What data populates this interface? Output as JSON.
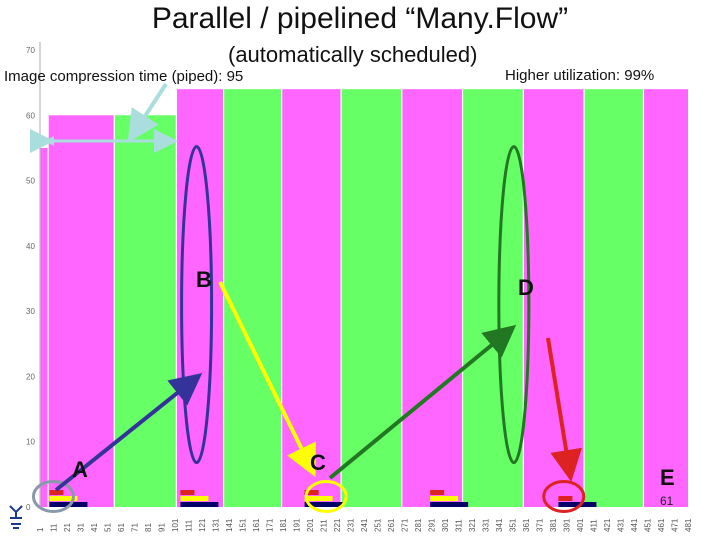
{
  "slide": {
    "title": "Parallel / pipelined “Many.Flow”",
    "subtitle": "(automatically scheduled)",
    "annotation_left": "Image compression time (piped): 95",
    "annotation_right": "Higher utilization: 99%",
    "slide_number": "61"
  },
  "colors": {
    "magenta": "#ff66ff",
    "green": "#66ff66",
    "yellow": "#ffff00",
    "red": "#dd2222",
    "navy": "#000066",
    "blue_arrow": "#333399",
    "green_arrow": "#227722",
    "light_arrow": "#aadddd"
  },
  "chart_data": {
    "type": "area",
    "ylim": [
      0,
      70
    ],
    "yticks": [
      0,
      10,
      20,
      30,
      40,
      50,
      60,
      70
    ],
    "xlim": [
      1,
      481
    ],
    "xticks": [
      1,
      11,
      21,
      31,
      41,
      51,
      61,
      71,
      81,
      91,
      101,
      111,
      121,
      131,
      141,
      151,
      161,
      171,
      181,
      191,
      201,
      211,
      221,
      231,
      241,
      251,
      261,
      271,
      281,
      291,
      301,
      311,
      321,
      331,
      341,
      351,
      361,
      371,
      381,
      391,
      401,
      411,
      421,
      431,
      441,
      451,
      461,
      471,
      481
    ],
    "bands": [
      {
        "color": "magenta",
        "x0": 1,
        "x1": 7,
        "top": 55
      },
      {
        "color": "magenta",
        "x0": 7,
        "x1": 56,
        "top": 60
      },
      {
        "color": "green",
        "x0": 56,
        "x1": 102,
        "top": 60
      },
      {
        "color": "magenta",
        "x0": 102,
        "x1": 137,
        "top": 64
      },
      {
        "color": "green",
        "x0": 137,
        "x1": 180,
        "top": 64
      },
      {
        "color": "magenta",
        "x0": 180,
        "x1": 224,
        "top": 64
      },
      {
        "color": "green",
        "x0": 224,
        "x1": 269,
        "top": 64
      },
      {
        "color": "magenta",
        "x0": 269,
        "x1": 314,
        "top": 64
      },
      {
        "color": "green",
        "x0": 314,
        "x1": 359,
        "top": 64
      },
      {
        "color": "magenta",
        "x0": 359,
        "x1": 404,
        "top": 64
      },
      {
        "color": "green",
        "x0": 404,
        "x1": 448,
        "top": 64
      },
      {
        "color": "magenta",
        "x0": 448,
        "x1": 481,
        "top": 64
      }
    ],
    "stacks": [
      {
        "x": 8,
        "red": 1,
        "yellow": 1,
        "navy": 1
      },
      {
        "x": 105,
        "red": 1,
        "yellow": 1,
        "navy": 1
      },
      {
        "x": 197,
        "red": 1,
        "yellow": 1,
        "navy": 1
      },
      {
        "x": 290,
        "red": 1,
        "yellow": 1,
        "navy": 1
      },
      {
        "x": 385,
        "red": 1,
        "yellow": 0,
        "navy": 1
      }
    ],
    "markers": [
      {
        "label": "A",
        "shape": "circle",
        "color": "#8899aa",
        "x": 8,
        "y": 1
      },
      {
        "label": "B",
        "shape": "ellipse",
        "color": "#333399",
        "x": 117,
        "y": 31
      },
      {
        "label": "C",
        "shape": "circle",
        "color": "#ffff00",
        "x": 210,
        "y": 1
      },
      {
        "label": "D",
        "shape": "ellipse",
        "color": "#227722",
        "x": 352,
        "y": 31
      },
      {
        "label": "E",
        "shape": "circle",
        "color": "#dd2222",
        "x": 386,
        "y": 1
      }
    ]
  }
}
